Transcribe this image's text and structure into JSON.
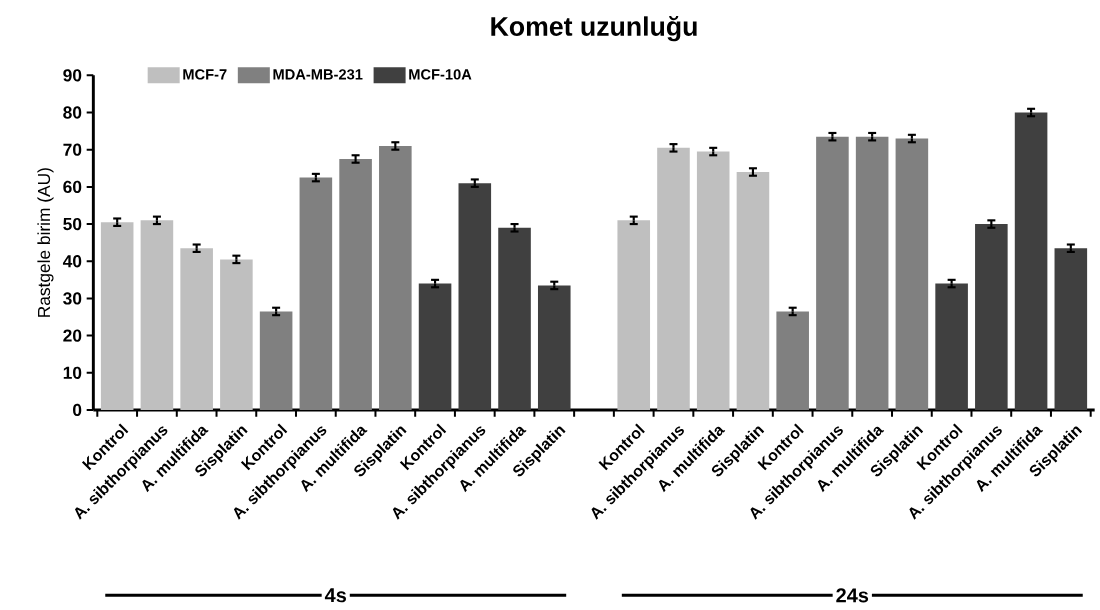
{
  "chart_data": {
    "type": "bar",
    "title": "Komet uzunluğu",
    "ylabel": "Rastgele birim (AU)",
    "categories": [
      "Kontrol",
      "A. sibthorpianus",
      "A. multifida",
      "Sisplatin",
      "Kontrol",
      "A. sibthorpianus",
      "A. multifida",
      "Sisplatin",
      "Kontrol",
      "A. sibthorpianus",
      "A. multifida",
      "Sisplatin",
      null,
      "Kontrol",
      "A. sibthorpianus",
      "A. multifida",
      "Sisplatin",
      "Kontrol",
      "A. sibthorpianus",
      "A. multifida",
      "Sisplatin",
      "Kontrol",
      "A. sibthorpianus",
      "A. multifida",
      "Sisplatin"
    ],
    "series": [
      {
        "name": "MCF-7",
        "color": "#bfbfbf",
        "values": [
          50.5,
          51,
          43.5,
          40.5,
          null,
          null,
          null,
          null,
          null,
          null,
          null,
          null,
          null,
          51,
          70.5,
          69.5,
          64,
          null,
          null,
          null,
          null,
          null,
          null,
          null,
          null
        ],
        "errors": [
          1,
          1,
          1,
          1,
          null,
          null,
          null,
          null,
          null,
          null,
          null,
          null,
          null,
          1,
          1,
          1,
          1,
          null,
          null,
          null,
          null,
          null,
          null,
          null,
          null
        ]
      },
      {
        "name": "MDA-MB-231",
        "color": "#808080",
        "values": [
          null,
          null,
          null,
          null,
          26.5,
          62.5,
          67.5,
          71,
          null,
          null,
          null,
          null,
          null,
          null,
          null,
          null,
          null,
          26.5,
          73.5,
          73.5,
          73,
          null,
          null,
          null,
          null
        ],
        "errors": [
          null,
          null,
          null,
          null,
          1,
          1,
          1,
          1,
          null,
          null,
          null,
          null,
          null,
          null,
          null,
          null,
          null,
          1,
          1,
          1,
          1,
          null,
          null,
          null,
          null
        ]
      },
      {
        "name": "MCF-10A",
        "color": "#404040",
        "values": [
          null,
          null,
          null,
          null,
          null,
          null,
          null,
          null,
          34,
          61,
          49,
          33.5,
          null,
          null,
          null,
          null,
          null,
          null,
          null,
          null,
          null,
          34,
          50,
          80,
          43.5
        ],
        "errors": [
          null,
          null,
          null,
          null,
          null,
          null,
          null,
          null,
          1,
          1,
          1,
          1,
          null,
          null,
          null,
          null,
          null,
          null,
          null,
          null,
          null,
          1,
          1,
          1,
          1
        ]
      }
    ],
    "ylim": [
      0,
      90
    ],
    "yticks": [
      0,
      10,
      20,
      30,
      40,
      50,
      60,
      70,
      80,
      90
    ],
    "legend": "top left",
    "annotations": [
      "4s",
      "24s"
    ]
  }
}
